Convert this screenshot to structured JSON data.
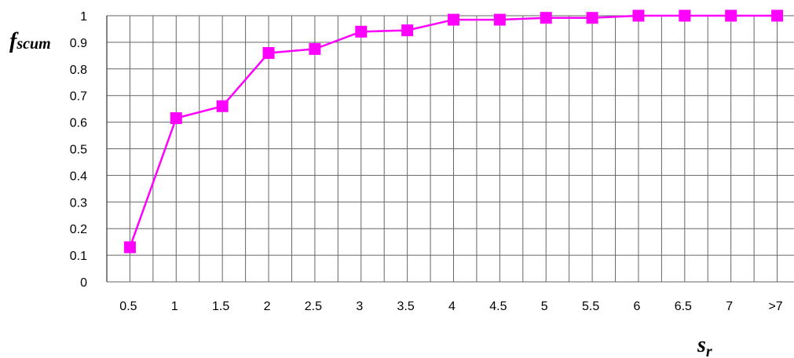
{
  "chart_data": {
    "type": "line",
    "xlabel": "s",
    "xlabel_sub": "r",
    "ylabel": "f",
    "ylabel_sub": "scum",
    "categories": [
      "0.5",
      "1",
      "1.5",
      "2",
      "2.5",
      "3",
      "3.5",
      "4",
      "4.5",
      "5",
      "5.5",
      "6",
      "6.5",
      "7",
      ">7"
    ],
    "series": [
      {
        "values": [
          0.13,
          0.615,
          0.66,
          0.86,
          0.875,
          0.94,
          0.945,
          0.985,
          0.985,
          0.992,
          0.992,
          1.0,
          1.0,
          1.0,
          1.0
        ],
        "color": "#ff00ff",
        "marker": "square"
      }
    ],
    "ylim": [
      0,
      1
    ],
    "yticks": [
      "0",
      "0.1",
      "0.2",
      "0.3",
      "0.4",
      "0.5",
      "0.6",
      "0.7",
      "0.8",
      "0.9",
      "1"
    ],
    "grid": true,
    "legend": "none"
  }
}
